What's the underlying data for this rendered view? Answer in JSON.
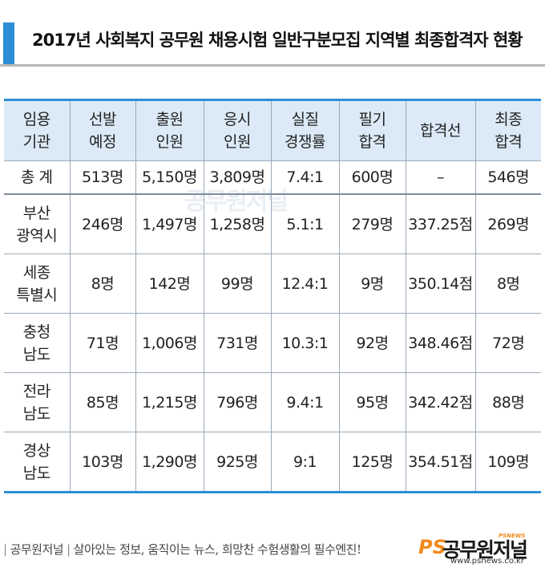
{
  "title": "2017년 사회복지 공무원 채용시험 일반구분모집 지역별 최종합격자 현황",
  "table": {
    "headers": [
      [
        "임용",
        "기관"
      ],
      [
        "선발",
        "예정"
      ],
      [
        "출원",
        "인원"
      ],
      [
        "응시",
        "인원"
      ],
      [
        "실질",
        "경쟁률"
      ],
      [
        "필기",
        "합격"
      ],
      [
        "합격선",
        ""
      ],
      [
        "최종",
        "합격"
      ]
    ],
    "total": {
      "label": "총  계",
      "cells": [
        "513명",
        "5,150명",
        "3,809명",
        "7.4:1",
        "600명",
        "–",
        "546명"
      ]
    },
    "rows": [
      {
        "label": [
          "부산",
          "광역시"
        ],
        "cells": [
          "246명",
          "1,497명",
          "1,258명",
          "5.1:1",
          "279명",
          "337.25점",
          "269명"
        ]
      },
      {
        "label": [
          "세종",
          "특별시"
        ],
        "cells": [
          "8명",
          "142명",
          "99명",
          "12.4:1",
          "9명",
          "350.14점",
          "8명"
        ]
      },
      {
        "label": [
          "충청",
          "남도"
        ],
        "cells": [
          "71명",
          "1,006명",
          "731명",
          "10.3:1",
          "92명",
          "348.46점",
          "72명"
        ]
      },
      {
        "label": [
          "전라",
          "남도"
        ],
        "cells": [
          "85명",
          "1,215명",
          "796명",
          "9.4:1",
          "95명",
          "342.42점",
          "88명"
        ]
      },
      {
        "label": [
          "경상",
          "남도"
        ],
        "cells": [
          "103명",
          "1,290명",
          "925명",
          "9:1",
          "125명",
          "354.51점",
          "109명"
        ]
      }
    ]
  },
  "watermark": "공무원저널",
  "footer": {
    "brand": "공무원저널",
    "slogan": "살아있는 정보, 움직이는 뉴스, 희망찬 수험생활의 필수엔진!",
    "logo_ps": "PS",
    "logo_name": "공무원저널",
    "logo_small": "PSNEWS",
    "logo_url": "www.psnews.co.kr"
  },
  "colors": {
    "accent": "#2c8fd6",
    "header_bg": "#dbeaf6",
    "logo_orange": "#f08a1c"
  }
}
